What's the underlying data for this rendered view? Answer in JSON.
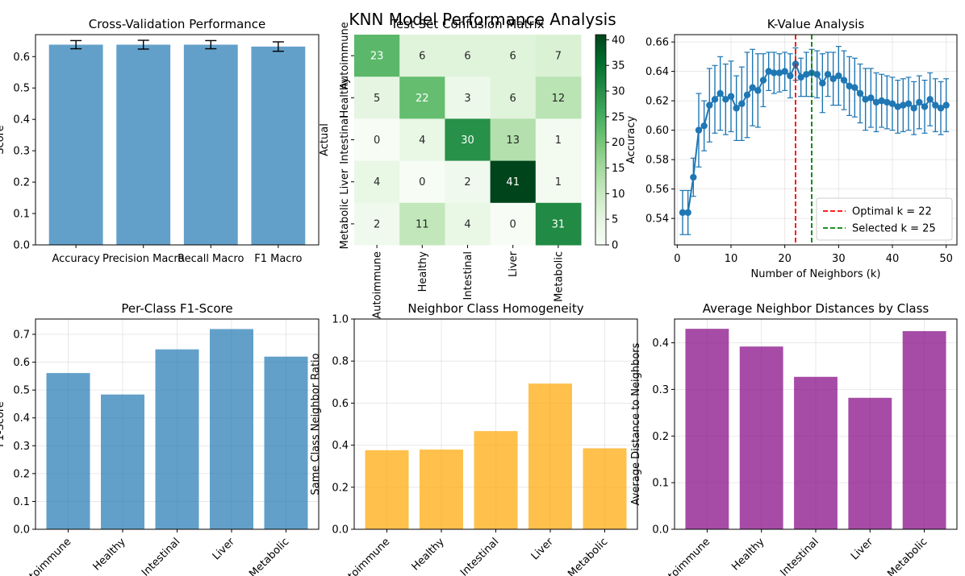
{
  "figure": {
    "title": "KNN Model Performance Analysis"
  },
  "chart_data": [
    {
      "id": "cv",
      "type": "bar",
      "title": "Cross-Validation Performance",
      "xlabel": "",
      "ylabel": "Score",
      "categories": [
        "Accuracy",
        "Precision Macro",
        "Recall Macro",
        "F1 Macro"
      ],
      "values": [
        0.638,
        0.638,
        0.638,
        0.632
      ],
      "errors": [
        0.013,
        0.014,
        0.013,
        0.015
      ],
      "ylim": [
        0,
        0.67
      ],
      "yticks": [
        0.0,
        0.1,
        0.2,
        0.3,
        0.4,
        0.5,
        0.6
      ],
      "color": "#1f77b4",
      "grid": false
    },
    {
      "id": "cm",
      "type": "heatmap",
      "title": "Test Set Confusion Matrix",
      "xlabel": "",
      "ylabel": "Actual",
      "classes": [
        "Autoimmune",
        "Healthy",
        "Intestinal",
        "Liver",
        "Metabolic"
      ],
      "matrix": [
        [
          23,
          6,
          6,
          6,
          7
        ],
        [
          5,
          22,
          3,
          6,
          12
        ],
        [
          0,
          4,
          30,
          13,
          1
        ],
        [
          4,
          0,
          2,
          41,
          1
        ],
        [
          2,
          11,
          4,
          0,
          31
        ]
      ],
      "colormap": "Greens",
      "vmin": 0,
      "vmax": 41,
      "colorbar_ticks": [
        0,
        5,
        10,
        15,
        20,
        25,
        30,
        35,
        40
      ]
    },
    {
      "id": "kval",
      "type": "line",
      "title": "K-Value Analysis",
      "xlabel": "Number of Neighbors (k)",
      "ylabel": "Accuracy",
      "xlim": [
        -0.5,
        52
      ],
      "ylim": [
        0.522,
        0.665
      ],
      "xticks": [
        0,
        10,
        20,
        30,
        40,
        50
      ],
      "yticks": [
        0.54,
        0.56,
        0.58,
        0.6,
        0.62,
        0.64,
        0.66
      ],
      "x": [
        1,
        2,
        3,
        4,
        5,
        6,
        7,
        8,
        9,
        10,
        11,
        12,
        13,
        14,
        15,
        16,
        17,
        18,
        19,
        20,
        21,
        22,
        23,
        24,
        25,
        26,
        27,
        28,
        29,
        30,
        31,
        32,
        33,
        34,
        35,
        36,
        37,
        38,
        39,
        40,
        41,
        42,
        43,
        44,
        45,
        46,
        47,
        48,
        49,
        50
      ],
      "y": [
        0.544,
        0.544,
        0.568,
        0.6,
        0.603,
        0.617,
        0.621,
        0.625,
        0.621,
        0.623,
        0.615,
        0.618,
        0.624,
        0.629,
        0.627,
        0.634,
        0.64,
        0.639,
        0.639,
        0.64,
        0.637,
        0.645,
        0.636,
        0.638,
        0.639,
        0.638,
        0.632,
        0.638,
        0.635,
        0.637,
        0.634,
        0.63,
        0.629,
        0.625,
        0.621,
        0.622,
        0.619,
        0.62,
        0.619,
        0.618,
        0.616,
        0.617,
        0.618,
        0.615,
        0.619,
        0.616,
        0.621,
        0.617,
        0.615,
        0.617
      ],
      "errors": [
        0.015,
        0.015,
        0.013,
        0.025,
        0.017,
        0.025,
        0.023,
        0.025,
        0.024,
        0.024,
        0.022,
        0.025,
        0.029,
        0.026,
        0.025,
        0.018,
        0.013,
        0.014,
        0.013,
        0.013,
        0.015,
        0.011,
        0.013,
        0.015,
        0.016,
        0.016,
        0.02,
        0.015,
        0.018,
        0.02,
        0.02,
        0.02,
        0.02,
        0.02,
        0.021,
        0.02,
        0.02,
        0.018,
        0.018,
        0.018,
        0.018,
        0.018,
        0.018,
        0.018,
        0.018,
        0.018,
        0.018,
        0.018,
        0.018,
        0.018
      ],
      "color": "#1f77b4",
      "vlines": [
        {
          "x": 22,
          "color": "#ff0000",
          "label": "Optimal k = 22"
        },
        {
          "x": 25,
          "color": "#008000",
          "label": "Selected k = 25"
        }
      ],
      "legend": "lower-right",
      "grid": true
    },
    {
      "id": "f1",
      "type": "bar",
      "title": "Per-Class F1-Score",
      "xlabel": "",
      "ylabel": "F1-Score",
      "categories": [
        "Autoimmune",
        "Healthy",
        "Intestinal",
        "Liver",
        "Metabolic"
      ],
      "values": [
        0.561,
        0.484,
        0.646,
        0.719,
        0.62
      ],
      "ylim": [
        0,
        0.755
      ],
      "yticks": [
        0.0,
        0.1,
        0.2,
        0.3,
        0.4,
        0.5,
        0.6,
        0.7
      ],
      "color": "#1f77b4",
      "grid": true
    },
    {
      "id": "homog",
      "type": "bar",
      "title": "Neighbor Class Homogeneity",
      "xlabel": "",
      "ylabel": "Same Class Neighbor Ratio",
      "categories": [
        "Autoimmune",
        "Healthy",
        "Intestinal",
        "Liver",
        "Metabolic"
      ],
      "values": [
        0.376,
        0.379,
        0.467,
        0.693,
        0.385
      ],
      "ylim": [
        0,
        1.0
      ],
      "yticks": [
        0.0,
        0.2,
        0.4,
        0.6,
        0.8,
        1.0
      ],
      "color": "#ffa500",
      "grid": true
    },
    {
      "id": "dist",
      "type": "bar",
      "title": "Average Neighbor Distances by Class",
      "xlabel": "",
      "ylabel": "Average Distance to Neighbors",
      "categories": [
        "Autoimmune",
        "Healthy",
        "Intestinal",
        "Liver",
        "Metabolic"
      ],
      "values": [
        0.43,
        0.392,
        0.327,
        0.282,
        0.425
      ],
      "ylim": [
        0,
        0.451
      ],
      "yticks": [
        0.0,
        0.1,
        0.2,
        0.3,
        0.4
      ],
      "color": "#800080",
      "grid": true
    }
  ]
}
